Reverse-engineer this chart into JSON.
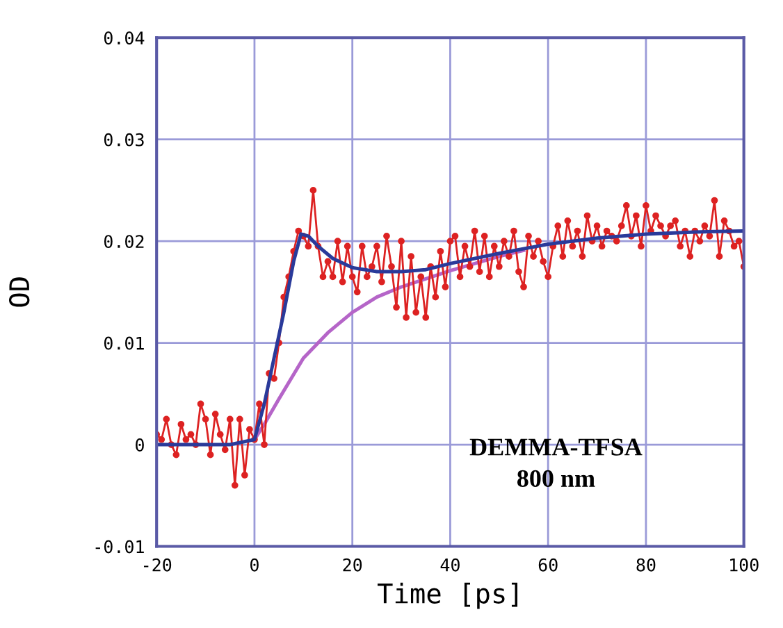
{
  "chart_data": {
    "type": "line",
    "xlabel": "Time [ps]",
    "ylabel": "OD",
    "xlim": [
      -20,
      100
    ],
    "xticks": [
      -20,
      0,
      20,
      40,
      60,
      80,
      100
    ],
    "ylim": [
      -0.01,
      0.04
    ],
    "yticks": [
      -0.01,
      0,
      0.01,
      0.02,
      0.03,
      0.04
    ],
    "grid": true,
    "annotations": [
      "DEMMA-TFSA\n800 nm"
    ],
    "series": [
      {
        "color": "#b565c8",
        "marker": "none",
        "x": [
          0,
          2,
          5,
          10,
          15,
          20,
          25,
          30,
          35,
          40,
          45,
          50,
          55
        ],
        "values": [
          0.0005,
          0.002,
          0.0045,
          0.0085,
          0.011,
          0.013,
          0.0145,
          0.0155,
          0.0163,
          0.0171,
          0.0178,
          0.0185,
          0.0191
        ]
      },
      {
        "color": "#dd2222",
        "marker": "circle",
        "x": [
          -20,
          -19,
          -18,
          -17,
          -16,
          -15,
          -14,
          -13,
          -12,
          -11,
          -10,
          -9,
          -8,
          -7,
          -6,
          -5,
          -4,
          -3,
          -2,
          -1,
          0,
          1,
          2,
          3,
          4,
          5,
          6,
          7,
          8,
          9,
          10,
          11,
          12,
          13,
          14,
          15,
          16,
          17,
          18,
          19,
          20,
          21,
          22,
          23,
          24,
          25,
          26,
          27,
          28,
          29,
          30,
          31,
          32,
          33,
          34,
          35,
          36,
          37,
          38,
          39,
          40,
          41,
          42,
          43,
          44,
          45,
          46,
          47,
          48,
          49,
          50,
          51,
          52,
          53,
          54,
          55,
          56,
          57,
          58,
          59,
          60,
          61,
          62,
          63,
          64,
          65,
          66,
          67,
          68,
          69,
          70,
          71,
          72,
          73,
          74,
          75,
          76,
          77,
          78,
          79,
          80,
          81,
          82,
          83,
          84,
          85,
          86,
          87,
          88,
          89,
          90,
          91,
          92,
          93,
          94,
          95,
          96,
          97,
          98,
          99,
          100
        ],
        "values": [
          0.001,
          0.0005,
          0.0025,
          0.0,
          -0.001,
          0.002,
          0.0005,
          0.001,
          0.0,
          0.004,
          0.0025,
          -0.001,
          0.003,
          0.001,
          -0.0005,
          0.0025,
          -0.004,
          0.0025,
          -0.003,
          0.0015,
          0.0005,
          0.004,
          0.0,
          0.007,
          0.0065,
          0.01,
          0.0145,
          0.0165,
          0.019,
          0.021,
          0.0205,
          0.0195,
          0.025,
          0.0195,
          0.0165,
          0.018,
          0.0165,
          0.02,
          0.016,
          0.0195,
          0.0165,
          0.015,
          0.0195,
          0.0165,
          0.0175,
          0.0195,
          0.016,
          0.0205,
          0.0175,
          0.0135,
          0.02,
          0.0125,
          0.0185,
          0.013,
          0.0165,
          0.0125,
          0.0175,
          0.0145,
          0.019,
          0.0155,
          0.02,
          0.0205,
          0.0165,
          0.0195,
          0.0175,
          0.021,
          0.017,
          0.0205,
          0.0165,
          0.0195,
          0.0175,
          0.02,
          0.0185,
          0.021,
          0.017,
          0.0155,
          0.0205,
          0.0185,
          0.02,
          0.018,
          0.0165,
          0.0195,
          0.0215,
          0.0185,
          0.022,
          0.0195,
          0.021,
          0.0185,
          0.0225,
          0.02,
          0.0215,
          0.0195,
          0.021,
          0.0205,
          0.02,
          0.0215,
          0.0235,
          0.0205,
          0.0225,
          0.0195,
          0.0235,
          0.021,
          0.0225,
          0.0215,
          0.0205,
          0.0215,
          0.022,
          0.0195,
          0.021,
          0.0185,
          0.021,
          0.02,
          0.0215,
          0.0205,
          0.024,
          0.0185,
          0.022,
          0.021,
          0.0195,
          0.02,
          0.0175
        ]
      },
      {
        "color": "#2a3a9a",
        "marker": "none",
        "x": [
          -20,
          -5,
          0,
          2,
          4,
          6,
          8,
          9.5,
          11,
          13,
          16,
          20,
          25,
          30,
          35,
          40,
          50,
          60,
          70,
          80,
          90,
          100
        ],
        "values": [
          0,
          0,
          0.0005,
          0.004,
          0.0085,
          0.013,
          0.018,
          0.0207,
          0.0205,
          0.0195,
          0.0183,
          0.0174,
          0.017,
          0.017,
          0.0172,
          0.0178,
          0.0188,
          0.0197,
          0.0203,
          0.0207,
          0.0209,
          0.021
        ]
      }
    ]
  }
}
